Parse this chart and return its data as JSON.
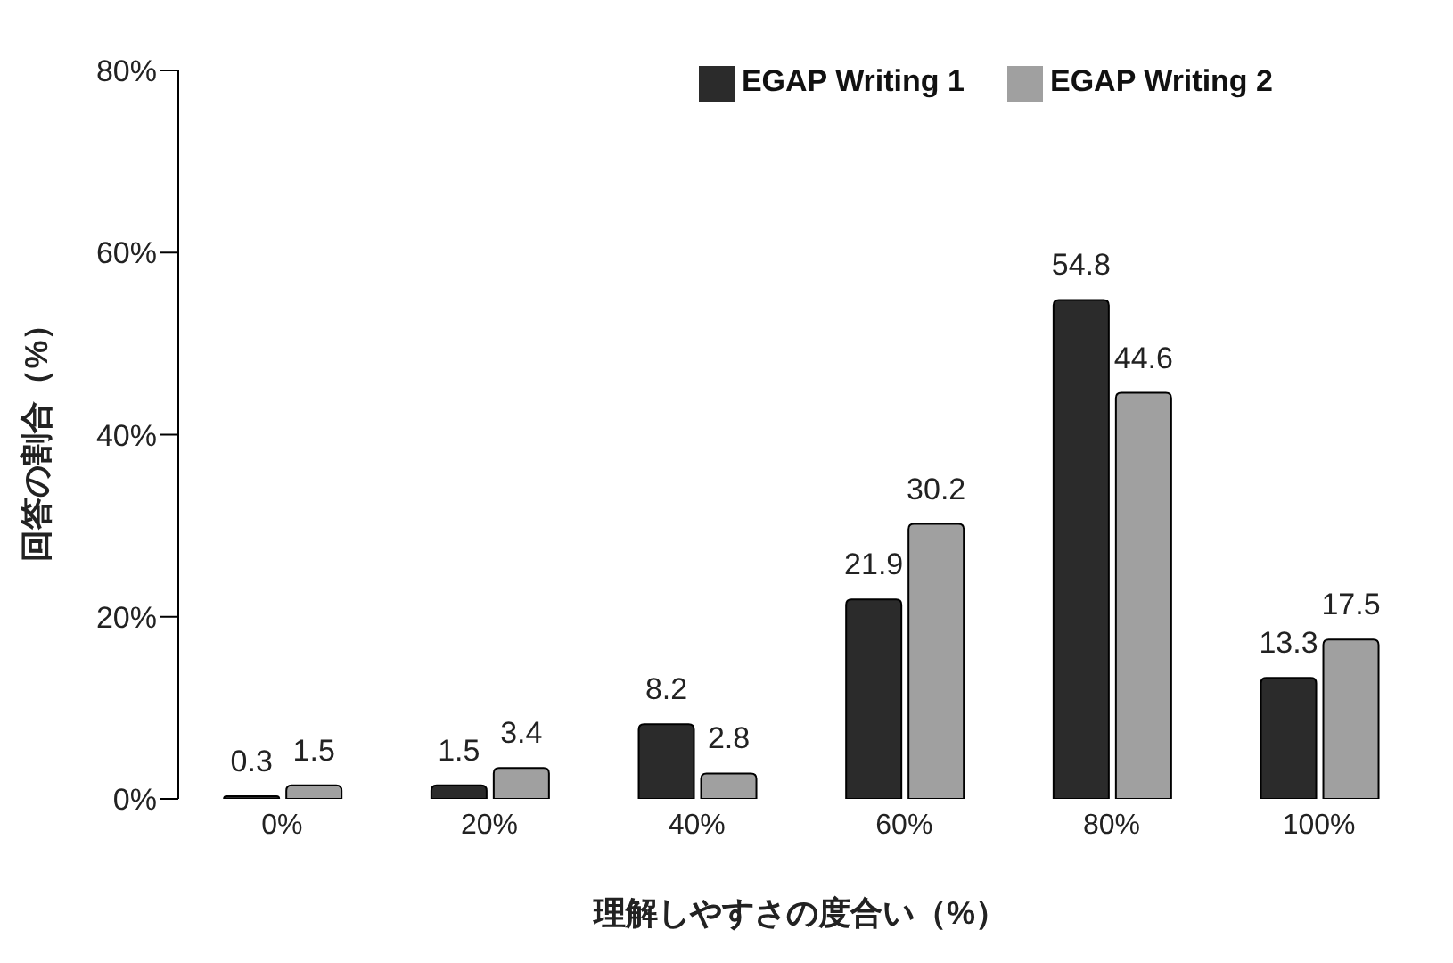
{
  "chart_data": {
    "type": "bar",
    "xlabel": "理解しやすさの度合い（%）",
    "ylabel": "回答の割合（%）",
    "categories": [
      "0%",
      "20%",
      "40%",
      "60%",
      "80%",
      "100%"
    ],
    "series": [
      {
        "name": "EGAP Writing 1",
        "color": "#2b2b2b",
        "values": [
          0.3,
          1.5,
          8.2,
          21.9,
          54.8,
          13.3
        ]
      },
      {
        "name": "EGAP Writing 2",
        "color": "#a0a0a0",
        "values": [
          1.5,
          3.4,
          2.8,
          30.2,
          44.6,
          17.5
        ]
      }
    ],
    "ylim": [
      0,
      80
    ],
    "yticks": [
      {
        "value": 0,
        "label": "0%"
      },
      {
        "value": 20,
        "label": "20%"
      },
      {
        "value": 40,
        "label": "40%"
      },
      {
        "value": 60,
        "label": "60%"
      },
      {
        "value": 80,
        "label": "80%"
      }
    ],
    "data_labels": true,
    "legend": "top right",
    "grid": false
  }
}
